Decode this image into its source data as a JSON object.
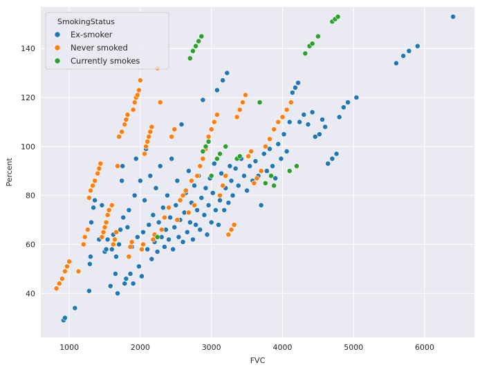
{
  "chart_data": {
    "type": "scatter",
    "title": "",
    "xlabel": "FVC",
    "ylabel": "Percent",
    "xlim": [
      600,
      6700
    ],
    "ylim": [
      22,
      157
    ],
    "xticks": [
      1000,
      2000,
      3000,
      4000,
      5000,
      6000
    ],
    "yticks": [
      40,
      60,
      80,
      100,
      120,
      140
    ],
    "grid": true,
    "legend": {
      "title": "SmokingStatus",
      "placement": "top-left"
    },
    "series": [
      {
        "name": "Ex-smoker",
        "color": "#1f77b4",
        "points": [
          [
            920,
            29
          ],
          [
            940,
            30
          ],
          [
            1080,
            34
          ],
          [
            1280,
            41
          ],
          [
            1290,
            52
          ],
          [
            1300,
            55
          ],
          [
            1310,
            69
          ],
          [
            1340,
            75
          ],
          [
            1360,
            78
          ],
          [
            1420,
            62
          ],
          [
            1460,
            76
          ],
          [
            1500,
            57
          ],
          [
            1520,
            58
          ],
          [
            1540,
            62
          ],
          [
            1580,
            43
          ],
          [
            1600,
            58
          ],
          [
            1620,
            64
          ],
          [
            1650,
            48
          ],
          [
            1660,
            55
          ],
          [
            1680,
            40
          ],
          [
            1700,
            60
          ],
          [
            1720,
            66
          ],
          [
            1740,
            86
          ],
          [
            1750,
            92
          ],
          [
            1760,
            71
          ],
          [
            1780,
            44
          ],
          [
            1800,
            46
          ],
          [
            1820,
            67
          ],
          [
            1840,
            74
          ],
          [
            1860,
            48
          ],
          [
            1880,
            59
          ],
          [
            1900,
            44
          ],
          [
            1920,
            80
          ],
          [
            1940,
            95
          ],
          [
            1960,
            63
          ],
          [
            1980,
            51
          ],
          [
            2000,
            86
          ],
          [
            2020,
            47
          ],
          [
            2040,
            65
          ],
          [
            2060,
            78
          ],
          [
            2080,
            99
          ],
          [
            2100,
            58
          ],
          [
            2120,
            68
          ],
          [
            2140,
            88
          ],
          [
            2160,
            54
          ],
          [
            2180,
            72
          ],
          [
            2200,
            61
          ],
          [
            2220,
            83
          ],
          [
            2240,
            57
          ],
          [
            2260,
            69
          ],
          [
            2280,
            92
          ],
          [
            2300,
            63
          ],
          [
            2320,
            75
          ],
          [
            2340,
            59
          ],
          [
            2360,
            66
          ],
          [
            2380,
            80
          ],
          [
            2400,
            62
          ],
          [
            2420,
            71
          ],
          [
            2440,
            95
          ],
          [
            2460,
            58
          ],
          [
            2480,
            67
          ],
          [
            2500,
            76
          ],
          [
            2520,
            86
          ],
          [
            2540,
            63
          ],
          [
            2560,
            70
          ],
          [
            2580,
            109
          ],
          [
            2600,
            61
          ],
          [
            2620,
            73
          ],
          [
            2640,
            81
          ],
          [
            2660,
            65
          ],
          [
            2680,
            90
          ],
          [
            2700,
            69
          ],
          [
            2720,
            77
          ],
          [
            2740,
            62
          ],
          [
            2760,
            84
          ],
          [
            2780,
            68
          ],
          [
            2800,
            74
          ],
          [
            2820,
            88
          ],
          [
            2840,
            66
          ],
          [
            2860,
            79
          ],
          [
            2880,
            119
          ],
          [
            2900,
            72
          ],
          [
            2920,
            83
          ],
          [
            2940,
            64
          ],
          [
            2960,
            76
          ],
          [
            2980,
            87
          ],
          [
            3000,
            69
          ],
          [
            3020,
            81
          ],
          [
            3040,
            93
          ],
          [
            3060,
            74
          ],
          [
            3080,
            123
          ],
          [
            3100,
            68
          ],
          [
            3120,
            78
          ],
          [
            3140,
            89
          ],
          [
            3160,
            127
          ],
          [
            3180,
            74
          ],
          [
            3200,
            83
          ],
          [
            3220,
            130
          ],
          [
            3240,
            77
          ],
          [
            3260,
            92
          ],
          [
            3280,
            86
          ],
          [
            3300,
            80
          ],
          [
            3340,
            91
          ],
          [
            3380,
            84
          ],
          [
            3420,
            95
          ],
          [
            3460,
            88
          ],
          [
            3500,
            82
          ],
          [
            3540,
            92
          ],
          [
            3580,
            86
          ],
          [
            3620,
            94
          ],
          [
            3660,
            88
          ],
          [
            3700,
            76
          ],
          [
            3740,
            97
          ],
          [
            3780,
            90
          ],
          [
            3820,
            99
          ],
          [
            3860,
            92
          ],
          [
            3900,
            87
          ],
          [
            3940,
            101
          ],
          [
            3980,
            95
          ],
          [
            4020,
            105
          ],
          [
            4060,
            98
          ],
          [
            4100,
            110
          ],
          [
            4140,
            122
          ],
          [
            4180,
            124
          ],
          [
            4220,
            126
          ],
          [
            4240,
            110
          ],
          [
            4300,
            113
          ],
          [
            4360,
            109
          ],
          [
            4420,
            114
          ],
          [
            4460,
            104
          ],
          [
            4520,
            105
          ],
          [
            4560,
            111
          ],
          [
            4600,
            108
          ],
          [
            4640,
            93
          ],
          [
            4700,
            95
          ],
          [
            4760,
            97
          ],
          [
            4800,
            112
          ],
          [
            4860,
            116
          ],
          [
            4920,
            118
          ],
          [
            5040,
            120
          ],
          [
            5600,
            134
          ],
          [
            5700,
            137
          ],
          [
            5780,
            139
          ],
          [
            5900,
            141
          ],
          [
            6400,
            153
          ]
        ]
      },
      {
        "name": "Never smoked",
        "color": "#ff7f0e",
        "points": [
          [
            820,
            42
          ],
          [
            860,
            44
          ],
          [
            900,
            46
          ],
          [
            940,
            49
          ],
          [
            970,
            51
          ],
          [
            1000,
            53
          ],
          [
            1130,
            49
          ],
          [
            1200,
            60
          ],
          [
            1220,
            63
          ],
          [
            1260,
            66
          ],
          [
            1280,
            79
          ],
          [
            1300,
            82
          ],
          [
            1330,
            84
          ],
          [
            1360,
            86
          ],
          [
            1400,
            89
          ],
          [
            1420,
            91
          ],
          [
            1440,
            93
          ],
          [
            1460,
            63
          ],
          [
            1480,
            65
          ],
          [
            1500,
            67
          ],
          [
            1520,
            69
          ],
          [
            1540,
            72
          ],
          [
            1560,
            74
          ],
          [
            1600,
            76
          ],
          [
            1620,
            60
          ],
          [
            1640,
            62
          ],
          [
            1660,
            65
          ],
          [
            1680,
            92
          ],
          [
            1700,
            104
          ],
          [
            1740,
            106
          ],
          [
            1780,
            109
          ],
          [
            1800,
            111
          ],
          [
            1820,
            113
          ],
          [
            1840,
            55
          ],
          [
            1860,
            59
          ],
          [
            1880,
            61
          ],
          [
            1900,
            115
          ],
          [
            1920,
            118
          ],
          [
            1940,
            120
          ],
          [
            1960,
            121
          ],
          [
            1980,
            123
          ],
          [
            2000,
            127
          ],
          [
            2020,
            58
          ],
          [
            2040,
            60
          ],
          [
            2060,
            97
          ],
          [
            2080,
            100
          ],
          [
            2100,
            102
          ],
          [
            2120,
            104
          ],
          [
            2140,
            106
          ],
          [
            2160,
            108
          ],
          [
            2180,
            62
          ],
          [
            2200,
            64
          ],
          [
            2240,
            132
          ],
          [
            2280,
            118
          ],
          [
            2300,
            66
          ],
          [
            2340,
            71
          ],
          [
            2400,
            75
          ],
          [
            2440,
            104
          ],
          [
            2480,
            107
          ],
          [
            2520,
            70
          ],
          [
            2560,
            78
          ],
          [
            2600,
            80
          ],
          [
            2640,
            82
          ],
          [
            2680,
            73
          ],
          [
            2720,
            86
          ],
          [
            2760,
            76
          ],
          [
            2800,
            88
          ],
          [
            2840,
            92
          ],
          [
            2880,
            95
          ],
          [
            2920,
            99
          ],
          [
            2960,
            104
          ],
          [
            3000,
            107
          ],
          [
            3040,
            110
          ],
          [
            3080,
            113
          ],
          [
            3120,
            80
          ],
          [
            3160,
            84
          ],
          [
            3200,
            88
          ],
          [
            3240,
            64
          ],
          [
            3280,
            66
          ],
          [
            3320,
            68
          ],
          [
            3360,
            112
          ],
          [
            3400,
            115
          ],
          [
            3440,
            118
          ],
          [
            3480,
            121
          ],
          [
            3520,
            96
          ],
          [
            3560,
            98
          ],
          [
            3600,
            85
          ],
          [
            3640,
            87
          ],
          [
            3700,
            90
          ],
          [
            3760,
            100
          ],
          [
            3820,
            103
          ],
          [
            3880,
            107
          ],
          [
            3940,
            110
          ],
          [
            4000,
            112
          ],
          [
            4060,
            115
          ],
          [
            4120,
            118
          ]
        ]
      },
      {
        "name": "Currently smokes",
        "color": "#2ca02c",
        "points": [
          [
            2240,
            63
          ],
          [
            2700,
            136
          ],
          [
            2740,
            139
          ],
          [
            2780,
            141
          ],
          [
            2820,
            143
          ],
          [
            2860,
            145
          ],
          [
            2880,
            98
          ],
          [
            2920,
            100
          ],
          [
            2960,
            102
          ],
          [
            3000,
            88
          ],
          [
            3080,
            95
          ],
          [
            3120,
            97
          ],
          [
            3200,
            100
          ],
          [
            3360,
            95
          ],
          [
            3400,
            96
          ],
          [
            3680,
            118
          ],
          [
            3760,
            85
          ],
          [
            3840,
            88
          ],
          [
            3880,
            84
          ],
          [
            4100,
            90
          ],
          [
            4200,
            92
          ],
          [
            4320,
            138
          ],
          [
            4380,
            141
          ],
          [
            4420,
            142
          ],
          [
            4500,
            145
          ],
          [
            4700,
            151
          ],
          [
            4740,
            152
          ],
          [
            4780,
            153
          ]
        ]
      }
    ]
  }
}
